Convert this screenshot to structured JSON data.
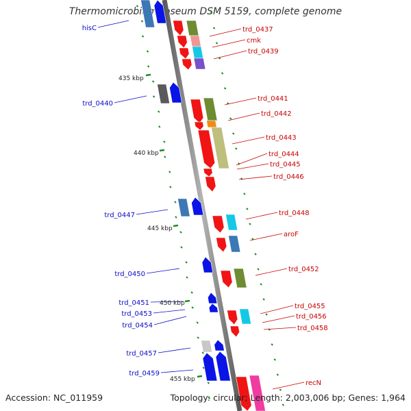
{
  "title": "Thermomicrobium roseum DSM 5159, complete genome",
  "accession_text": "Accession: NC_011959",
  "topology_text": "Topology: circular; Length: 2,003,006 bp; Genes: 1,964",
  "colors": {
    "backbone": "#8c8c8c",
    "left_label": "#0a0ac8",
    "right_label": "#c80000",
    "tick": "#1e8c1e"
  },
  "scale_labels": [
    "435 kbp",
    "440 kbp",
    "445 kbp",
    "450 kbp",
    "455 kbp"
  ],
  "left_labels": [
    "hisC",
    "trd_0440",
    "trd_0447",
    "trd_0450",
    "trd_0451",
    "trd_0453",
    "trd_0454",
    "trd_0457",
    "trd_0459"
  ],
  "right_labels": [
    "trd_0437",
    "cmk",
    "trd_0439",
    "trd_0441",
    "trd_0442",
    "trd_0443",
    "trd_0444",
    "trd_0445",
    "trd_0446",
    "trd_0448",
    "aroF",
    "trd_0452",
    "trd_0455",
    "trd_0456",
    "trd_0458",
    "recN"
  ],
  "gene_colors": {
    "blue": "#0a14e6",
    "steel": "#3c78b4",
    "gray": "#5a5a5a",
    "lightgray": "#c8c8c8",
    "red": "#f01414",
    "olive": "#6e8c32",
    "pink": "#f09696",
    "cyan": "#14c8e6",
    "purple": "#7850c8",
    "orange": "#f08c14",
    "khaki": "#bebe7d",
    "magenta": "#f03ca0"
  }
}
